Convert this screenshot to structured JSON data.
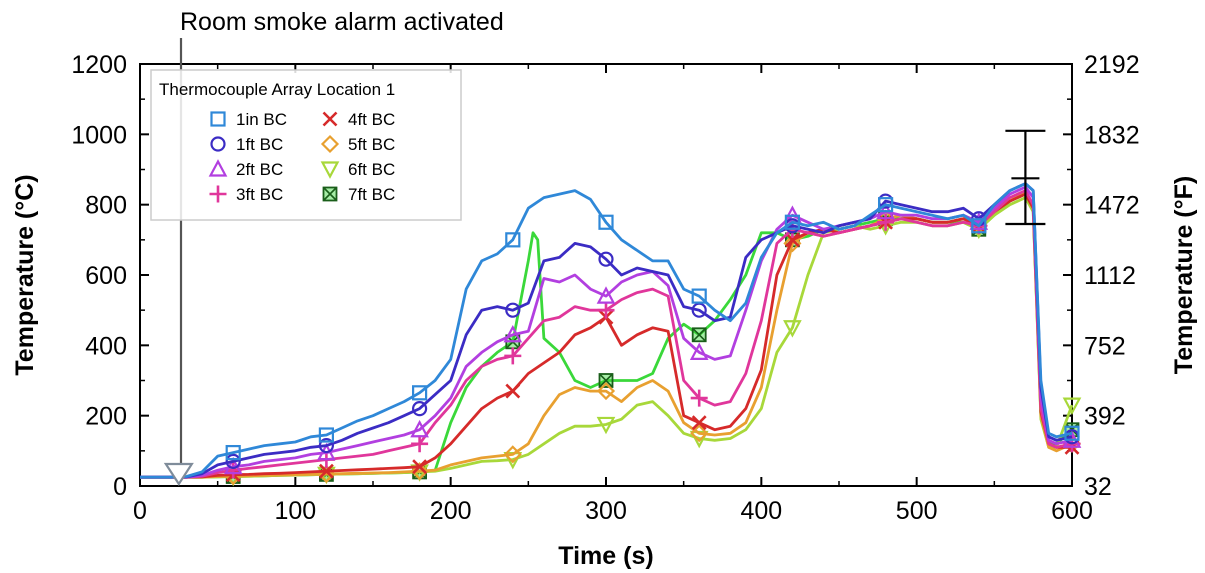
{
  "chart_data": {
    "type": "line",
    "title": "",
    "xlabel": "Time (s)",
    "ylabel": "Temperature (°C)",
    "y2label": "Temperature (°F)",
    "xlim": [
      0,
      600
    ],
    "ylim": [
      0,
      1200
    ],
    "x_ticks": [
      "0",
      "100",
      "200",
      "300",
      "400",
      "500",
      "600"
    ],
    "y_ticks": [
      "0",
      "200",
      "400",
      "600",
      "800",
      "1000",
      "1200"
    ],
    "y2_ticks": [
      "32",
      "392",
      "752",
      "1112",
      "1472",
      "1832",
      "2192"
    ],
    "grid": false,
    "legend": {
      "title": "Thermocouple Array Location 1",
      "placement": "top-left"
    },
    "annotation": {
      "text": "Room smoke alarm activated",
      "x": 25
    },
    "error_bar": {
      "x": 570,
      "center": 875,
      "low": 745,
      "high": 1010
    },
    "series": [
      {
        "name": "1in BC",
        "color": "#2f88d8",
        "marker": "square",
        "x": [
          0,
          10,
          20,
          30,
          40,
          50,
          60,
          70,
          80,
          90,
          100,
          110,
          120,
          130,
          140,
          150,
          160,
          170,
          180,
          190,
          200,
          210,
          220,
          230,
          240,
          250,
          260,
          270,
          280,
          290,
          300,
          310,
          320,
          330,
          340,
          350,
          360,
          370,
          380,
          390,
          400,
          410,
          420,
          430,
          440,
          450,
          460,
          470,
          480,
          490,
          500,
          510,
          520,
          530,
          540,
          550,
          560,
          570,
          575,
          580,
          585,
          590,
          600
        ],
        "y": [
          25,
          25,
          25,
          27,
          40,
          85,
          95,
          105,
          115,
          120,
          125,
          140,
          145,
          165,
          185,
          200,
          220,
          240,
          265,
          300,
          360,
          560,
          640,
          660,
          700,
          790,
          820,
          830,
          840,
          815,
          750,
          700,
          670,
          640,
          640,
          560,
          540,
          500,
          470,
          520,
          650,
          720,
          750,
          740,
          750,
          730,
          740,
          770,
          800,
          790,
          780,
          770,
          760,
          770,
          740,
          800,
          840,
          860,
          840,
          300,
          150,
          140,
          150
        ]
      },
      {
        "name": "1ft BC",
        "color": "#3b2cc4",
        "marker": "circle",
        "x": [
          0,
          10,
          20,
          30,
          40,
          50,
          60,
          70,
          80,
          90,
          100,
          110,
          120,
          130,
          140,
          150,
          160,
          170,
          180,
          190,
          200,
          210,
          220,
          230,
          240,
          250,
          260,
          270,
          280,
          290,
          300,
          310,
          320,
          330,
          340,
          350,
          360,
          370,
          380,
          390,
          400,
          410,
          420,
          430,
          440,
          450,
          460,
          470,
          480,
          490,
          500,
          510,
          520,
          530,
          540,
          550,
          560,
          570,
          575,
          580,
          585,
          590,
          600
        ],
        "y": [
          25,
          25,
          25,
          26,
          35,
          60,
          70,
          80,
          90,
          95,
          100,
          110,
          115,
          130,
          150,
          165,
          180,
          200,
          220,
          260,
          300,
          430,
          500,
          510,
          500,
          520,
          640,
          650,
          690,
          680,
          645,
          600,
          620,
          610,
          600,
          510,
          500,
          470,
          480,
          650,
          700,
          720,
          740,
          730,
          720,
          740,
          750,
          760,
          810,
          800,
          790,
          780,
          780,
          790,
          760,
          800,
          840,
          860,
          840,
          280,
          140,
          130,
          140
        ]
      },
      {
        "name": "2ft BC",
        "color": "#b23fe0",
        "marker": "triangle-up",
        "x": [
          0,
          10,
          20,
          30,
          40,
          50,
          60,
          70,
          80,
          90,
          100,
          110,
          120,
          130,
          140,
          150,
          160,
          170,
          180,
          190,
          200,
          210,
          220,
          230,
          240,
          250,
          260,
          270,
          280,
          290,
          300,
          310,
          320,
          330,
          340,
          350,
          360,
          370,
          380,
          390,
          400,
          410,
          420,
          430,
          440,
          450,
          460,
          470,
          480,
          490,
          500,
          510,
          520,
          530,
          540,
          550,
          560,
          570,
          575,
          580,
          585,
          590,
          600
        ],
        "y": [
          25,
          25,
          25,
          25,
          30,
          45,
          55,
          60,
          70,
          75,
          80,
          90,
          95,
          105,
          115,
          125,
          135,
          145,
          160,
          200,
          250,
          340,
          380,
          410,
          430,
          440,
          590,
          580,
          600,
          560,
          540,
          580,
          600,
          610,
          570,
          420,
          380,
          360,
          370,
          500,
          640,
          730,
          770,
          750,
          730,
          740,
          750,
          760,
          780,
          770,
          770,
          760,
          760,
          770,
          750,
          790,
          830,
          850,
          820,
          250,
          130,
          120,
          130
        ]
      },
      {
        "name": "3ft BC",
        "color": "#e0369b",
        "marker": "plus",
        "x": [
          0,
          10,
          20,
          30,
          40,
          50,
          60,
          70,
          80,
          90,
          100,
          110,
          120,
          130,
          140,
          150,
          160,
          170,
          180,
          190,
          200,
          210,
          220,
          230,
          240,
          250,
          260,
          270,
          280,
          290,
          300,
          310,
          320,
          330,
          340,
          350,
          360,
          370,
          380,
          390,
          400,
          410,
          420,
          430,
          440,
          450,
          460,
          470,
          480,
          490,
          500,
          510,
          520,
          530,
          540,
          550,
          560,
          570,
          575,
          580,
          585,
          590,
          600
        ],
        "y": [
          25,
          25,
          25,
          25,
          28,
          38,
          45,
          50,
          55,
          60,
          65,
          70,
          75,
          80,
          85,
          90,
          100,
          110,
          120,
          180,
          230,
          300,
          340,
          360,
          370,
          420,
          470,
          480,
          510,
          500,
          500,
          530,
          550,
          560,
          540,
          300,
          250,
          230,
          240,
          320,
          470,
          690,
          730,
          720,
          710,
          720,
          730,
          740,
          750,
          760,
          750,
          740,
          740,
          750,
          740,
          780,
          820,
          840,
          800,
          220,
          120,
          110,
          120
        ]
      },
      {
        "name": "4ft BC",
        "color": "#d62a2a",
        "marker": "x",
        "x": [
          0,
          10,
          20,
          30,
          40,
          50,
          60,
          70,
          80,
          90,
          100,
          110,
          120,
          130,
          140,
          150,
          160,
          170,
          180,
          190,
          200,
          210,
          220,
          230,
          240,
          250,
          260,
          270,
          280,
          290,
          300,
          310,
          320,
          330,
          340,
          350,
          360,
          370,
          380,
          390,
          400,
          410,
          420,
          430,
          440,
          450,
          460,
          470,
          480,
          490,
          500,
          510,
          520,
          530,
          540,
          550,
          560,
          570,
          575,
          580,
          585,
          590,
          600
        ],
        "y": [
          25,
          25,
          25,
          25,
          26,
          30,
          32,
          33,
          35,
          36,
          38,
          40,
          42,
          44,
          46,
          48,
          50,
          52,
          55,
          80,
          120,
          170,
          220,
          250,
          270,
          320,
          350,
          380,
          430,
          450,
          480,
          400,
          430,
          450,
          440,
          200,
          180,
          160,
          170,
          220,
          330,
          600,
          700,
          720,
          730,
          720,
          730,
          740,
          750,
          760,
          760,
          750,
          750,
          760,
          740,
          780,
          810,
          830,
          790,
          210,
          120,
          110,
          110
        ]
      },
      {
        "name": "5ft BC",
        "color": "#e8a030",
        "marker": "diamond",
        "x": [
          0,
          10,
          20,
          30,
          40,
          50,
          60,
          70,
          80,
          90,
          100,
          110,
          120,
          130,
          140,
          150,
          160,
          170,
          180,
          190,
          200,
          210,
          220,
          230,
          240,
          250,
          260,
          270,
          280,
          290,
          300,
          310,
          320,
          330,
          340,
          350,
          360,
          370,
          380,
          390,
          400,
          410,
          420,
          430,
          440,
          450,
          460,
          470,
          480,
          490,
          500,
          510,
          520,
          530,
          540,
          550,
          560,
          570,
          575,
          580,
          585,
          590,
          600
        ],
        "y": [
          25,
          25,
          25,
          25,
          25,
          27,
          28,
          29,
          30,
          31,
          32,
          33,
          34,
          35,
          36,
          37,
          38,
          40,
          42,
          45,
          60,
          70,
          80,
          85,
          90,
          120,
          200,
          260,
          280,
          270,
          270,
          240,
          280,
          300,
          270,
          180,
          150,
          145,
          150,
          180,
          280,
          500,
          690,
          720,
          710,
          720,
          730,
          740,
          760,
          770,
          760,
          750,
          750,
          760,
          740,
          780,
          810,
          840,
          790,
          200,
          110,
          100,
          120
        ]
      },
      {
        "name": "6ft BC",
        "color": "#a8d83a",
        "marker": "triangle-down",
        "x": [
          0,
          10,
          20,
          30,
          40,
          50,
          60,
          70,
          80,
          90,
          100,
          110,
          120,
          130,
          140,
          150,
          160,
          170,
          180,
          190,
          200,
          210,
          220,
          230,
          240,
          250,
          260,
          270,
          280,
          290,
          300,
          310,
          320,
          330,
          340,
          350,
          360,
          370,
          380,
          390,
          400,
          410,
          420,
          430,
          440,
          450,
          460,
          470,
          480,
          490,
          500,
          510,
          520,
          530,
          540,
          550,
          560,
          570,
          575,
          580,
          585,
          590,
          600
        ],
        "y": [
          25,
          25,
          25,
          25,
          25,
          26,
          27,
          28,
          29,
          30,
          31,
          32,
          33,
          34,
          35,
          36,
          37,
          38,
          40,
          42,
          50,
          60,
          70,
          72,
          75,
          90,
          120,
          150,
          170,
          170,
          175,
          190,
          230,
          240,
          200,
          150,
          135,
          130,
          135,
          160,
          220,
          380,
          450,
          600,
          720,
          730,
          740,
          730,
          740,
          750,
          750,
          740,
          740,
          750,
          730,
          770,
          800,
          820,
          780,
          190,
          110,
          110,
          230
        ]
      },
      {
        "name": "7ft BC",
        "color": "#3ad83a",
        "marker": "square-x",
        "x": [
          0,
          10,
          20,
          30,
          40,
          50,
          60,
          70,
          80,
          90,
          100,
          110,
          120,
          130,
          140,
          150,
          160,
          170,
          180,
          190,
          200,
          210,
          220,
          230,
          240,
          250,
          253,
          256,
          260,
          270,
          280,
          290,
          300,
          310,
          320,
          330,
          340,
          350,
          360,
          370,
          380,
          390,
          400,
          410,
          420,
          430,
          440,
          450,
          460,
          470,
          480,
          490,
          500,
          510,
          520,
          530,
          540,
          550,
          560,
          570,
          575,
          580,
          585,
          590,
          600
        ],
        "y": [
          25,
          25,
          25,
          25,
          25,
          26,
          27,
          28,
          29,
          30,
          31,
          32,
          33,
          34,
          35,
          36,
          37,
          38,
          40,
          44,
          180,
          280,
          340,
          380,
          410,
          640,
          720,
          700,
          420,
          380,
          300,
          280,
          300,
          300,
          300,
          320,
          420,
          460,
          430,
          470,
          530,
          600,
          720,
          720,
          700,
          710,
          730,
          730,
          740,
          750,
          760,
          760,
          760,
          750,
          750,
          750,
          730,
          770,
          810,
          830,
          780,
          200,
          120,
          120,
          160
        ]
      }
    ]
  }
}
